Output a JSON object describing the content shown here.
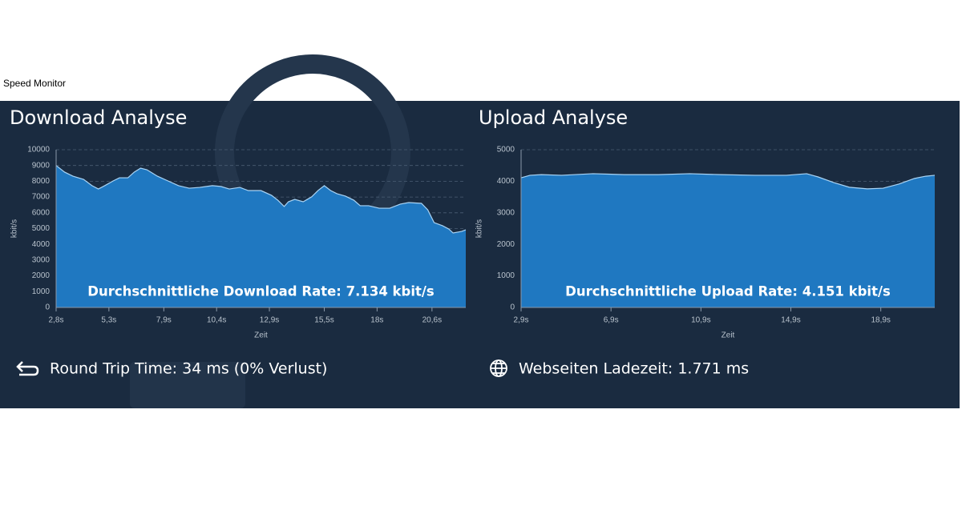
{
  "app_title": "Speed Monitor",
  "chart_data": [
    {
      "type": "area",
      "title": "Download Analyse",
      "x_label": "Zeit",
      "y_label": "kbit/s",
      "annotation": "Durchschnittliche Download Rate: 7.134 kbit/s",
      "color": "#1f78c1",
      "line_color": "#a9d4f5",
      "grid": true,
      "xlim": [
        2.8,
        22.2
      ],
      "ylim": [
        0,
        10000
      ],
      "xticks": [
        {
          "value": 2.8,
          "label": "2,8s"
        },
        {
          "value": 5.3,
          "label": "5,3s"
        },
        {
          "value": 7.9,
          "label": "7,9s"
        },
        {
          "value": 10.4,
          "label": "10,4s"
        },
        {
          "value": 12.9,
          "label": "12,9s"
        },
        {
          "value": 15.5,
          "label": "15,5s"
        },
        {
          "value": 18,
          "label": "18s"
        },
        {
          "value": 20.6,
          "label": "20,6s"
        }
      ],
      "yticks": [
        0,
        1000,
        2000,
        3000,
        4000,
        5000,
        6000,
        7000,
        8000,
        9000,
        10000
      ],
      "x": [
        2.8,
        3.2,
        3.6,
        4.1,
        4.5,
        4.8,
        5.1,
        5.5,
        5.8,
        6.2,
        6.5,
        6.8,
        7.1,
        7.6,
        8.1,
        8.6,
        9.1,
        9.6,
        10.2,
        10.6,
        11.0,
        11.5,
        11.9,
        12.5,
        13.0,
        13.3,
        13.6,
        13.8,
        14.1,
        14.5,
        14.9,
        15.2,
        15.5,
        15.8,
        16.1,
        16.5,
        16.9,
        17.2,
        17.6,
        18.1,
        18.6,
        19.1,
        19.5,
        20.1,
        20.4,
        20.7,
        21.1,
        21.4,
        21.6,
        22.0,
        22.2
      ],
      "values": [
        9000,
        8580,
        8320,
        8120,
        7720,
        7510,
        7720,
        8020,
        8220,
        8220,
        8580,
        8830,
        8730,
        8320,
        8020,
        7720,
        7560,
        7610,
        7720,
        7670,
        7510,
        7610,
        7410,
        7410,
        7110,
        6800,
        6400,
        6700,
        6850,
        6700,
        7010,
        7410,
        7720,
        7410,
        7210,
        7060,
        6800,
        6450,
        6450,
        6290,
        6290,
        6550,
        6650,
        6600,
        6190,
        5380,
        5180,
        4970,
        4720,
        4820,
        4920
      ]
    },
    {
      "type": "area",
      "title": "Upload Analyse",
      "x_label": "Zeit",
      "y_label": "kbit/s",
      "annotation": "Durchschnittliche Upload Rate: 4.151 kbit/s",
      "color": "#1f78c1",
      "line_color": "#a9d4f5",
      "grid": true,
      "xlim": [
        2.9,
        21.3
      ],
      "ylim": [
        0,
        5000
      ],
      "xticks": [
        {
          "value": 2.9,
          "label": "2,9s"
        },
        {
          "value": 6.9,
          "label": "6,9s"
        },
        {
          "value": 10.9,
          "label": "10,9s"
        },
        {
          "value": 14.9,
          "label": "14,9s"
        },
        {
          "value": 18.9,
          "label": "18,9s"
        }
      ],
      "yticks": [
        0,
        1000,
        2000,
        3000,
        4000,
        5000
      ],
      "x": [
        2.9,
        3.3,
        3.8,
        4.7,
        6.1,
        7.5,
        9.0,
        10.4,
        11.8,
        13.3,
        14.7,
        15.6,
        16.1,
        16.8,
        17.5,
        18.3,
        19.0,
        19.7,
        20.4,
        20.9,
        21.3
      ],
      "values": [
        4110,
        4190,
        4210,
        4190,
        4240,
        4210,
        4210,
        4240,
        4210,
        4190,
        4190,
        4240,
        4140,
        3960,
        3810,
        3760,
        3780,
        3910,
        4090,
        4160,
        4190
      ]
    }
  ],
  "stats": {
    "round_trip": "Round Trip Time: 34 ms (0% Verlust)",
    "page_load": "Webseiten Ladezeit: 1.771 ms"
  }
}
